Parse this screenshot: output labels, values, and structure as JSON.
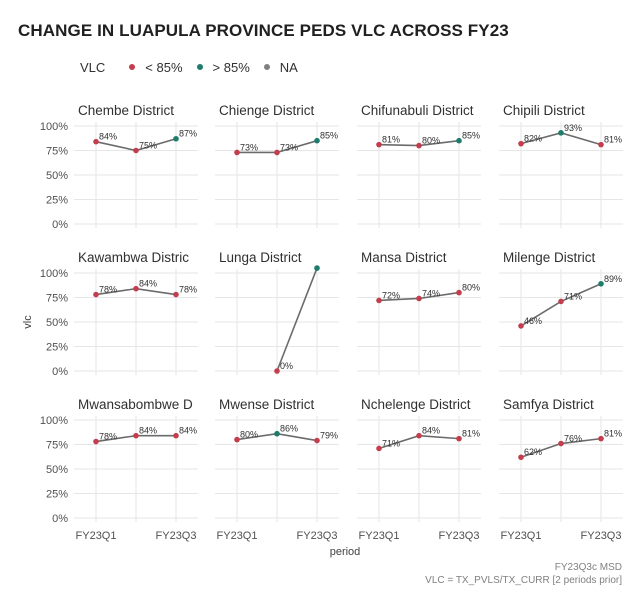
{
  "title": "CHANGE IN LUAPULA PROVINCE PEDS VLC ACROSS FY23",
  "legend": {
    "title": "VLC",
    "items": [
      {
        "label": "< 85%",
        "color": "#c43d4d"
      },
      {
        "label": "> 85%",
        "color": "#1e7c6b"
      },
      {
        "label": "NA",
        "color": "#808080"
      }
    ]
  },
  "caption": {
    "line1": "FY23Q3c MSD",
    "line2": "VLC = TX_PVLS/TX_CURR [2 periods prior]"
  },
  "colors": {
    "below": "#c43d4d",
    "above": "#1e7c6b",
    "line": "#6b6b6b",
    "grid": "#e6e6e6"
  },
  "chart_data": {
    "type": "line",
    "xlabel": "period",
    "ylabel": "vlc",
    "x": [
      "FY23Q1",
      "FY23Q2",
      "FY23Q3"
    ],
    "x_tick_labels": [
      "FY23Q1",
      "FY23Q3"
    ],
    "y_tick_values": [
      0,
      0.25,
      0.5,
      0.75,
      1.0
    ],
    "y_tick_labels": [
      "0%",
      "25%",
      "50%",
      "75%",
      "100%"
    ],
    "ylim": [
      0,
      1.1
    ],
    "facets": [
      {
        "name": "Chembe District",
        "values": [
          0.84,
          0.75,
          0.87
        ],
        "labels": [
          "84%",
          "75%",
          "87%"
        ]
      },
      {
        "name": "Chienge District",
        "values": [
          0.73,
          0.73,
          0.85
        ],
        "labels": [
          "73%",
          "73%",
          "85%"
        ]
      },
      {
        "name": "Chifunabuli District",
        "values": [
          0.81,
          0.8,
          0.85
        ],
        "labels": [
          "81%",
          "80%",
          "85%"
        ]
      },
      {
        "name": "Chipili District",
        "values": [
          0.82,
          0.93,
          0.81
        ],
        "labels": [
          "82%",
          "93%",
          "81%"
        ]
      },
      {
        "name": "Kawambwa Distric",
        "values": [
          0.78,
          0.84,
          0.78
        ],
        "labels": [
          "78%",
          "84%",
          "78%"
        ]
      },
      {
        "name": "Lunga District",
        "values": [
          null,
          0.0,
          1.05
        ],
        "labels": [
          null,
          "0%",
          null
        ]
      },
      {
        "name": "Mansa District",
        "values": [
          0.72,
          0.74,
          0.8
        ],
        "labels": [
          "72%",
          "74%",
          "80%"
        ]
      },
      {
        "name": "Milenge District",
        "values": [
          0.46,
          0.71,
          0.89
        ],
        "labels": [
          "46%",
          "71%",
          "89%"
        ]
      },
      {
        "name": "Mwansabombwe D",
        "values": [
          0.78,
          0.84,
          0.84
        ],
        "labels": [
          "78%",
          "84%",
          "84%"
        ]
      },
      {
        "name": "Mwense District",
        "values": [
          0.8,
          0.86,
          0.79
        ],
        "labels": [
          "80%",
          "86%",
          "79%"
        ]
      },
      {
        "name": "Nchelenge District",
        "values": [
          0.71,
          0.84,
          0.81
        ],
        "labels": [
          "71%",
          "84%",
          "81%"
        ]
      },
      {
        "name": "Samfya District",
        "values": [
          0.62,
          0.76,
          0.81
        ],
        "labels": [
          "62%",
          "76%",
          "81%"
        ]
      }
    ]
  }
}
